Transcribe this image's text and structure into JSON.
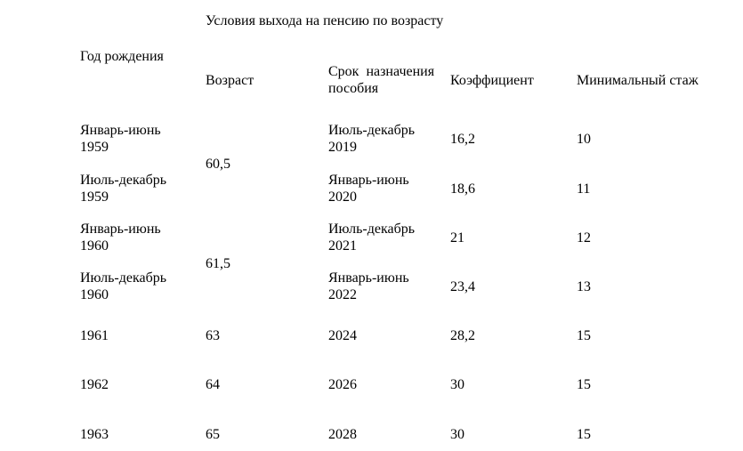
{
  "title": "Условия выхода на пенсию по возрасту",
  "headers": {
    "birth_year": "Год рождения",
    "age": "Возраст",
    "term_line1": "Срок  назначения",
    "term_line2": "пособия",
    "coefficient": "Коэффициент",
    "min_experience": "Минимальный стаж"
  },
  "rows": [
    {
      "birth_line1": "Январь-июнь",
      "birth_line2": "1959",
      "term_line1": "Июль-декабрь",
      "term_line2": "2019",
      "coefficient": "16,2",
      "min_experience": "10"
    },
    {
      "birth_line1": "Июль-декабрь",
      "birth_line2": "1959",
      "term_line1": "Январь-июнь",
      "term_line2": "2020",
      "coefficient": "18,6",
      "min_experience": "11"
    },
    {
      "birth_line1": "Январь-июнь",
      "birth_line2": "1960",
      "term_line1": "Июль-декабрь",
      "term_line2": "2021",
      "coefficient": "21",
      "min_experience": "12"
    },
    {
      "birth_line1": "Июль-декабрь",
      "birth_line2": "1960",
      "term_line1": "Январь-июнь",
      "term_line2": "2022",
      "coefficient": "23,4",
      "min_experience": "13"
    },
    {
      "birth": "1961",
      "age": "63",
      "term": "2024",
      "coefficient": "28,2",
      "min_experience": "15"
    },
    {
      "birth": "1962",
      "age": "64",
      "term": "2026",
      "coefficient": "30",
      "min_experience": "15"
    },
    {
      "birth": "1963",
      "age": "65",
      "term": "2028",
      "coefficient": "30",
      "min_experience": "15"
    }
  ],
  "merged_ages": [
    "60,5",
    "61,5"
  ]
}
